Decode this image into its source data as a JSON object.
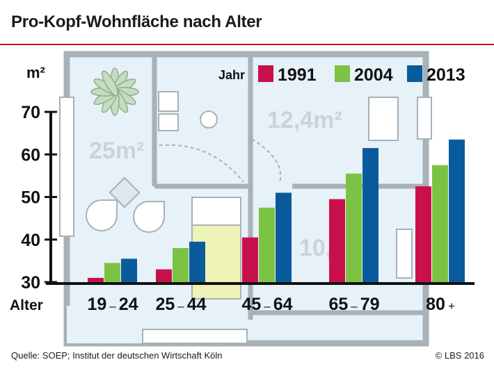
{
  "title": "Pro-Kopf-Wohnfläche nach Alter",
  "source": "Quelle: SOEP; Institut der deutschen Wirtschaft Köln",
  "copyright": "© LBS 2016",
  "floorplan_labels": {
    "living": "25m²",
    "bedroom": "12,4m²",
    "small_room": "10,"
  },
  "colors": {
    "title_rule": "#c8102e",
    "series_1991": "#c8104b",
    "series_2004": "#7cc243",
    "series_2013": "#0a5b9c",
    "floorplan_fill": "#e6f1f8",
    "floorplan_wall": "#a7b1b8"
  },
  "chart_data": {
    "type": "bar",
    "title": "Pro-Kopf-Wohnfläche nach Alter",
    "xlabel": "Alter",
    "ylabel": "m²",
    "legend_title": "Jahr",
    "legend_position": "top-right",
    "categories": [
      "19 – 24",
      "25 – 44",
      "45 – 64",
      "65 – 79",
      "80+"
    ],
    "category_parts": [
      [
        "19",
        "–",
        "24"
      ],
      [
        "25",
        "–",
        "44"
      ],
      [
        "45",
        "–",
        "64"
      ],
      [
        "65",
        "–",
        "79"
      ],
      [
        "80",
        "+",
        ""
      ]
    ],
    "yticks": [
      30,
      40,
      50,
      60,
      70
    ],
    "ylim": [
      30,
      70
    ],
    "grid": false,
    "series": [
      {
        "name": "1991",
        "values": [
          31,
          33,
          40.5,
          49.5,
          52.5
        ]
      },
      {
        "name": "2004",
        "values": [
          34.5,
          38,
          47.5,
          55.5,
          57.5
        ]
      },
      {
        "name": "2013",
        "values": [
          35.5,
          39.5,
          51,
          61.5,
          63.5
        ]
      }
    ]
  }
}
